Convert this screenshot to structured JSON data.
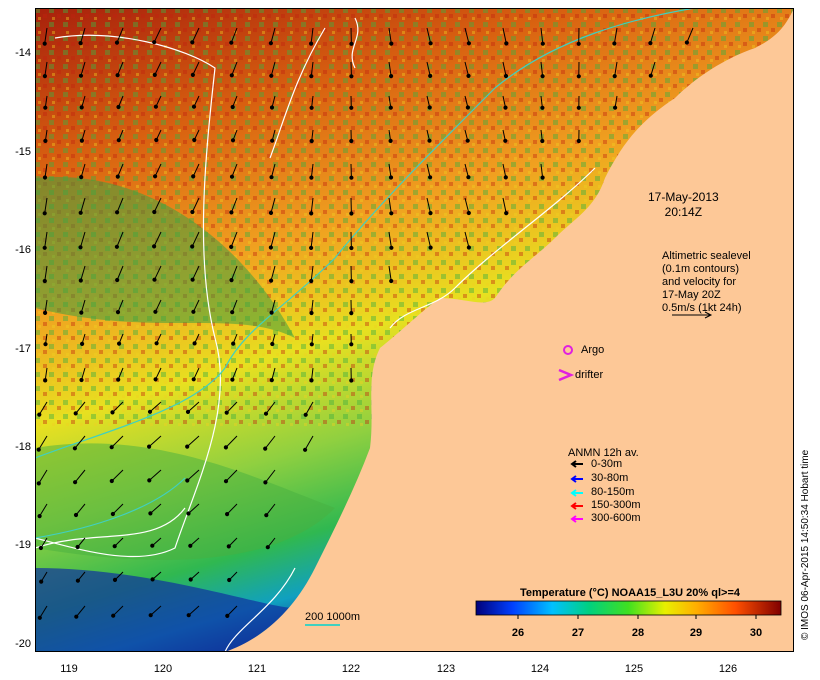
{
  "map": {
    "timestamp": [
      "17-May-2013",
      "20:14Z"
    ],
    "altimetry_note": [
      "Altimetric sealevel",
      "(0.1m contours)",
      "and velocity for",
      "17-May 20Z",
      "0.5m/s (1kt 24h)"
    ],
    "argo_label": "Argo",
    "drifter_label": "drifter",
    "bathymetry_label": "200  1000m",
    "credit": "© IMOS 06-Apr-2015 14:50:34 Hobart time"
  },
  "axes": {
    "latitudes": [
      "-14",
      "-15",
      "-16",
      "-17",
      "-18",
      "-19",
      "-20"
    ],
    "longitudes": [
      "119",
      "120",
      "121",
      "122",
      "123",
      "124",
      "125",
      "126"
    ]
  },
  "anmn_legend": {
    "title": "ANMN 12h av.",
    "items": [
      {
        "label": "0-30m",
        "color": "#000000"
      },
      {
        "label": "30-80m",
        "color": "#0000ff"
      },
      {
        "label": "80-150m",
        "color": "#00ffff"
      },
      {
        "label": "150-300m",
        "color": "#ff0000"
      },
      {
        "label": "300-600m",
        "color": "#ff00ff"
      }
    ]
  },
  "colorbar": {
    "title": "Temperature (°C) NOAA15_L3U 20% ql>=4",
    "ticks": [
      "26",
      "27",
      "28",
      "29",
      "30"
    ]
  },
  "colors": {
    "land": "#fdc897",
    "marker": "#e020e0",
    "contour": "#ffffff",
    "bathy": "#40d0c0"
  },
  "icons": {
    "argo": "circle-outline",
    "drifter": "chevron"
  }
}
